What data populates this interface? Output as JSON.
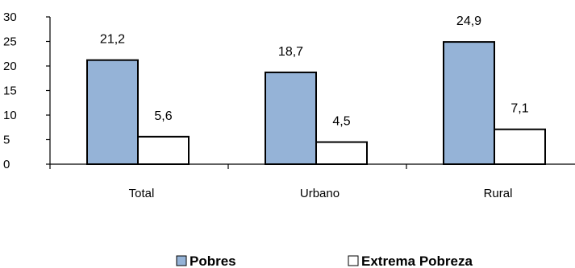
{
  "chart_data": {
    "type": "bar",
    "categories": [
      "Total",
      "Urbano",
      "Rural"
    ],
    "series": [
      {
        "name": "Pobres",
        "values": [
          21.2,
          18.7,
          24.9
        ],
        "labels": [
          "21,2",
          "18,7",
          "24,9"
        ],
        "color": "#95B3D7"
      },
      {
        "name": "Extrema Pobreza",
        "values": [
          5.6,
          4.5,
          7.1
        ],
        "labels": [
          "5,6",
          "4,5",
          "7,1"
        ],
        "color": "#FFFFFF"
      }
    ],
    "title": "",
    "xlabel": "",
    "ylabel": "",
    "ylim": [
      0,
      30
    ],
    "yticks": [
      "0",
      "5",
      "10",
      "15",
      "20",
      "25",
      "30"
    ],
    "grid": false,
    "legend_position": "bottom"
  }
}
